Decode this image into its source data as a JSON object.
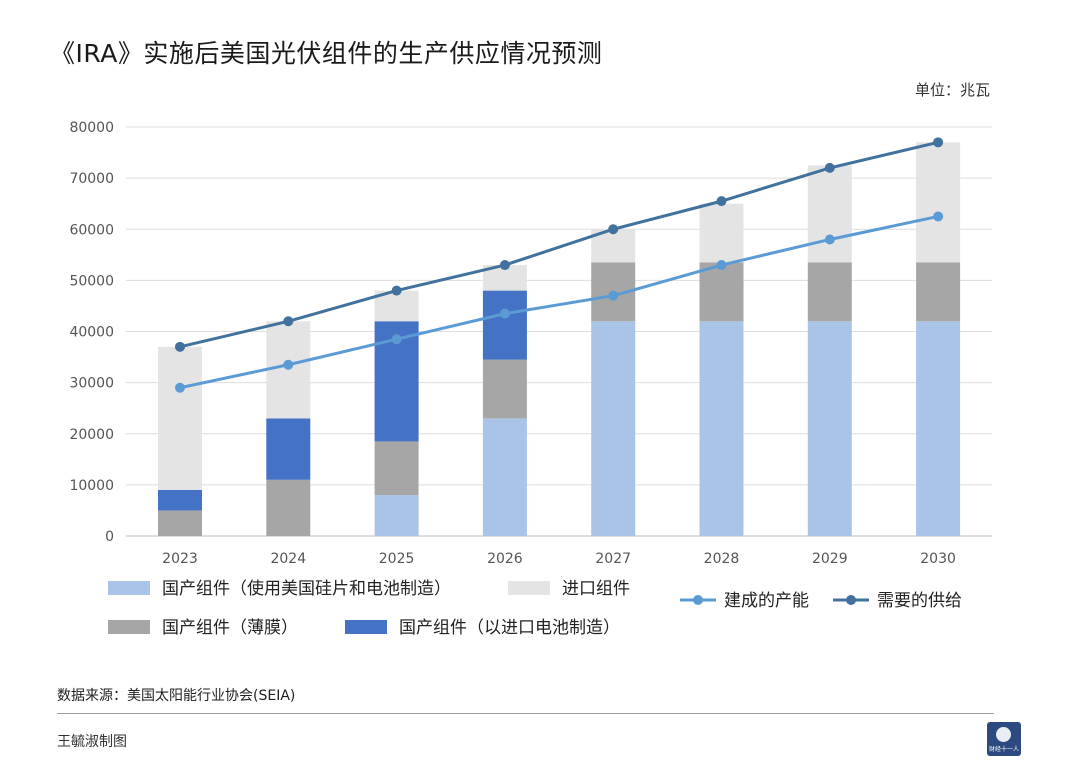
{
  "title": "《IRA》实施后美国光伏组件的生产供应情况预测",
  "unit": "单位：兆瓦",
  "source": "数据来源：美国太阳能行业协会(SEIA)",
  "author": "王毓淑制图",
  "logo_text": "财经十一人",
  "chart_data": {
    "type": "bar",
    "stacked": true,
    "categories": [
      "2023",
      "2024",
      "2025",
      "2026",
      "2027",
      "2028",
      "2029",
      "2030"
    ],
    "ylim": [
      0,
      80000
    ],
    "yticks": [
      "0",
      "10000",
      "20000",
      "30000",
      "40000",
      "50000",
      "60000",
      "70000",
      "80000"
    ],
    "grid": true,
    "series": [
      {
        "name": "国产组件（使用美国硅片和电池制造）",
        "color": "#a9c4e6",
        "values": [
          0,
          0,
          8000,
          23000,
          42000,
          42000,
          42000,
          42000
        ]
      },
      {
        "name": "国产组件（薄膜）",
        "color": "#a6a6a6",
        "values": [
          5000,
          11000,
          10500,
          11500,
          11500,
          11500,
          11500,
          11500
        ]
      },
      {
        "name": "国产组件（以进口电池制造）",
        "color": "#4472c4",
        "values": [
          4000,
          12000,
          23500,
          13500,
          0,
          0,
          0,
          0
        ]
      },
      {
        "name": "进口组件",
        "color": "#e4e4e4",
        "values": [
          28000,
          19000,
          6000,
          5000,
          6500,
          11500,
          19000,
          23500
        ]
      }
    ],
    "lines": [
      {
        "name": "建成的产能",
        "color": "#5b9bd5",
        "values": [
          29000,
          33500,
          38500,
          43500,
          47000,
          53000,
          58000,
          62500
        ]
      },
      {
        "name": "需要的供给",
        "color": "#41719c",
        "values": [
          37000,
          42000,
          48000,
          53000,
          60000,
          65500,
          72000,
          77000
        ]
      }
    ],
    "legend": [
      {
        "name": "国产组件（使用美国硅片和电池制造）",
        "kind": "box",
        "color": "#a9c4e6"
      },
      {
        "name": "进口组件",
        "kind": "box",
        "color": "#e4e4e4"
      },
      {
        "name": "建成的产能",
        "kind": "line",
        "color": "#5b9bd5"
      },
      {
        "name": "需要的供给",
        "kind": "line",
        "color": "#41719c"
      },
      {
        "name": "国产组件（薄膜）",
        "kind": "box",
        "color": "#a6a6a6"
      },
      {
        "name": "国产组件（以进口电池制造）",
        "kind": "box",
        "color": "#4472c4"
      }
    ],
    "legend_position": "bottom"
  }
}
